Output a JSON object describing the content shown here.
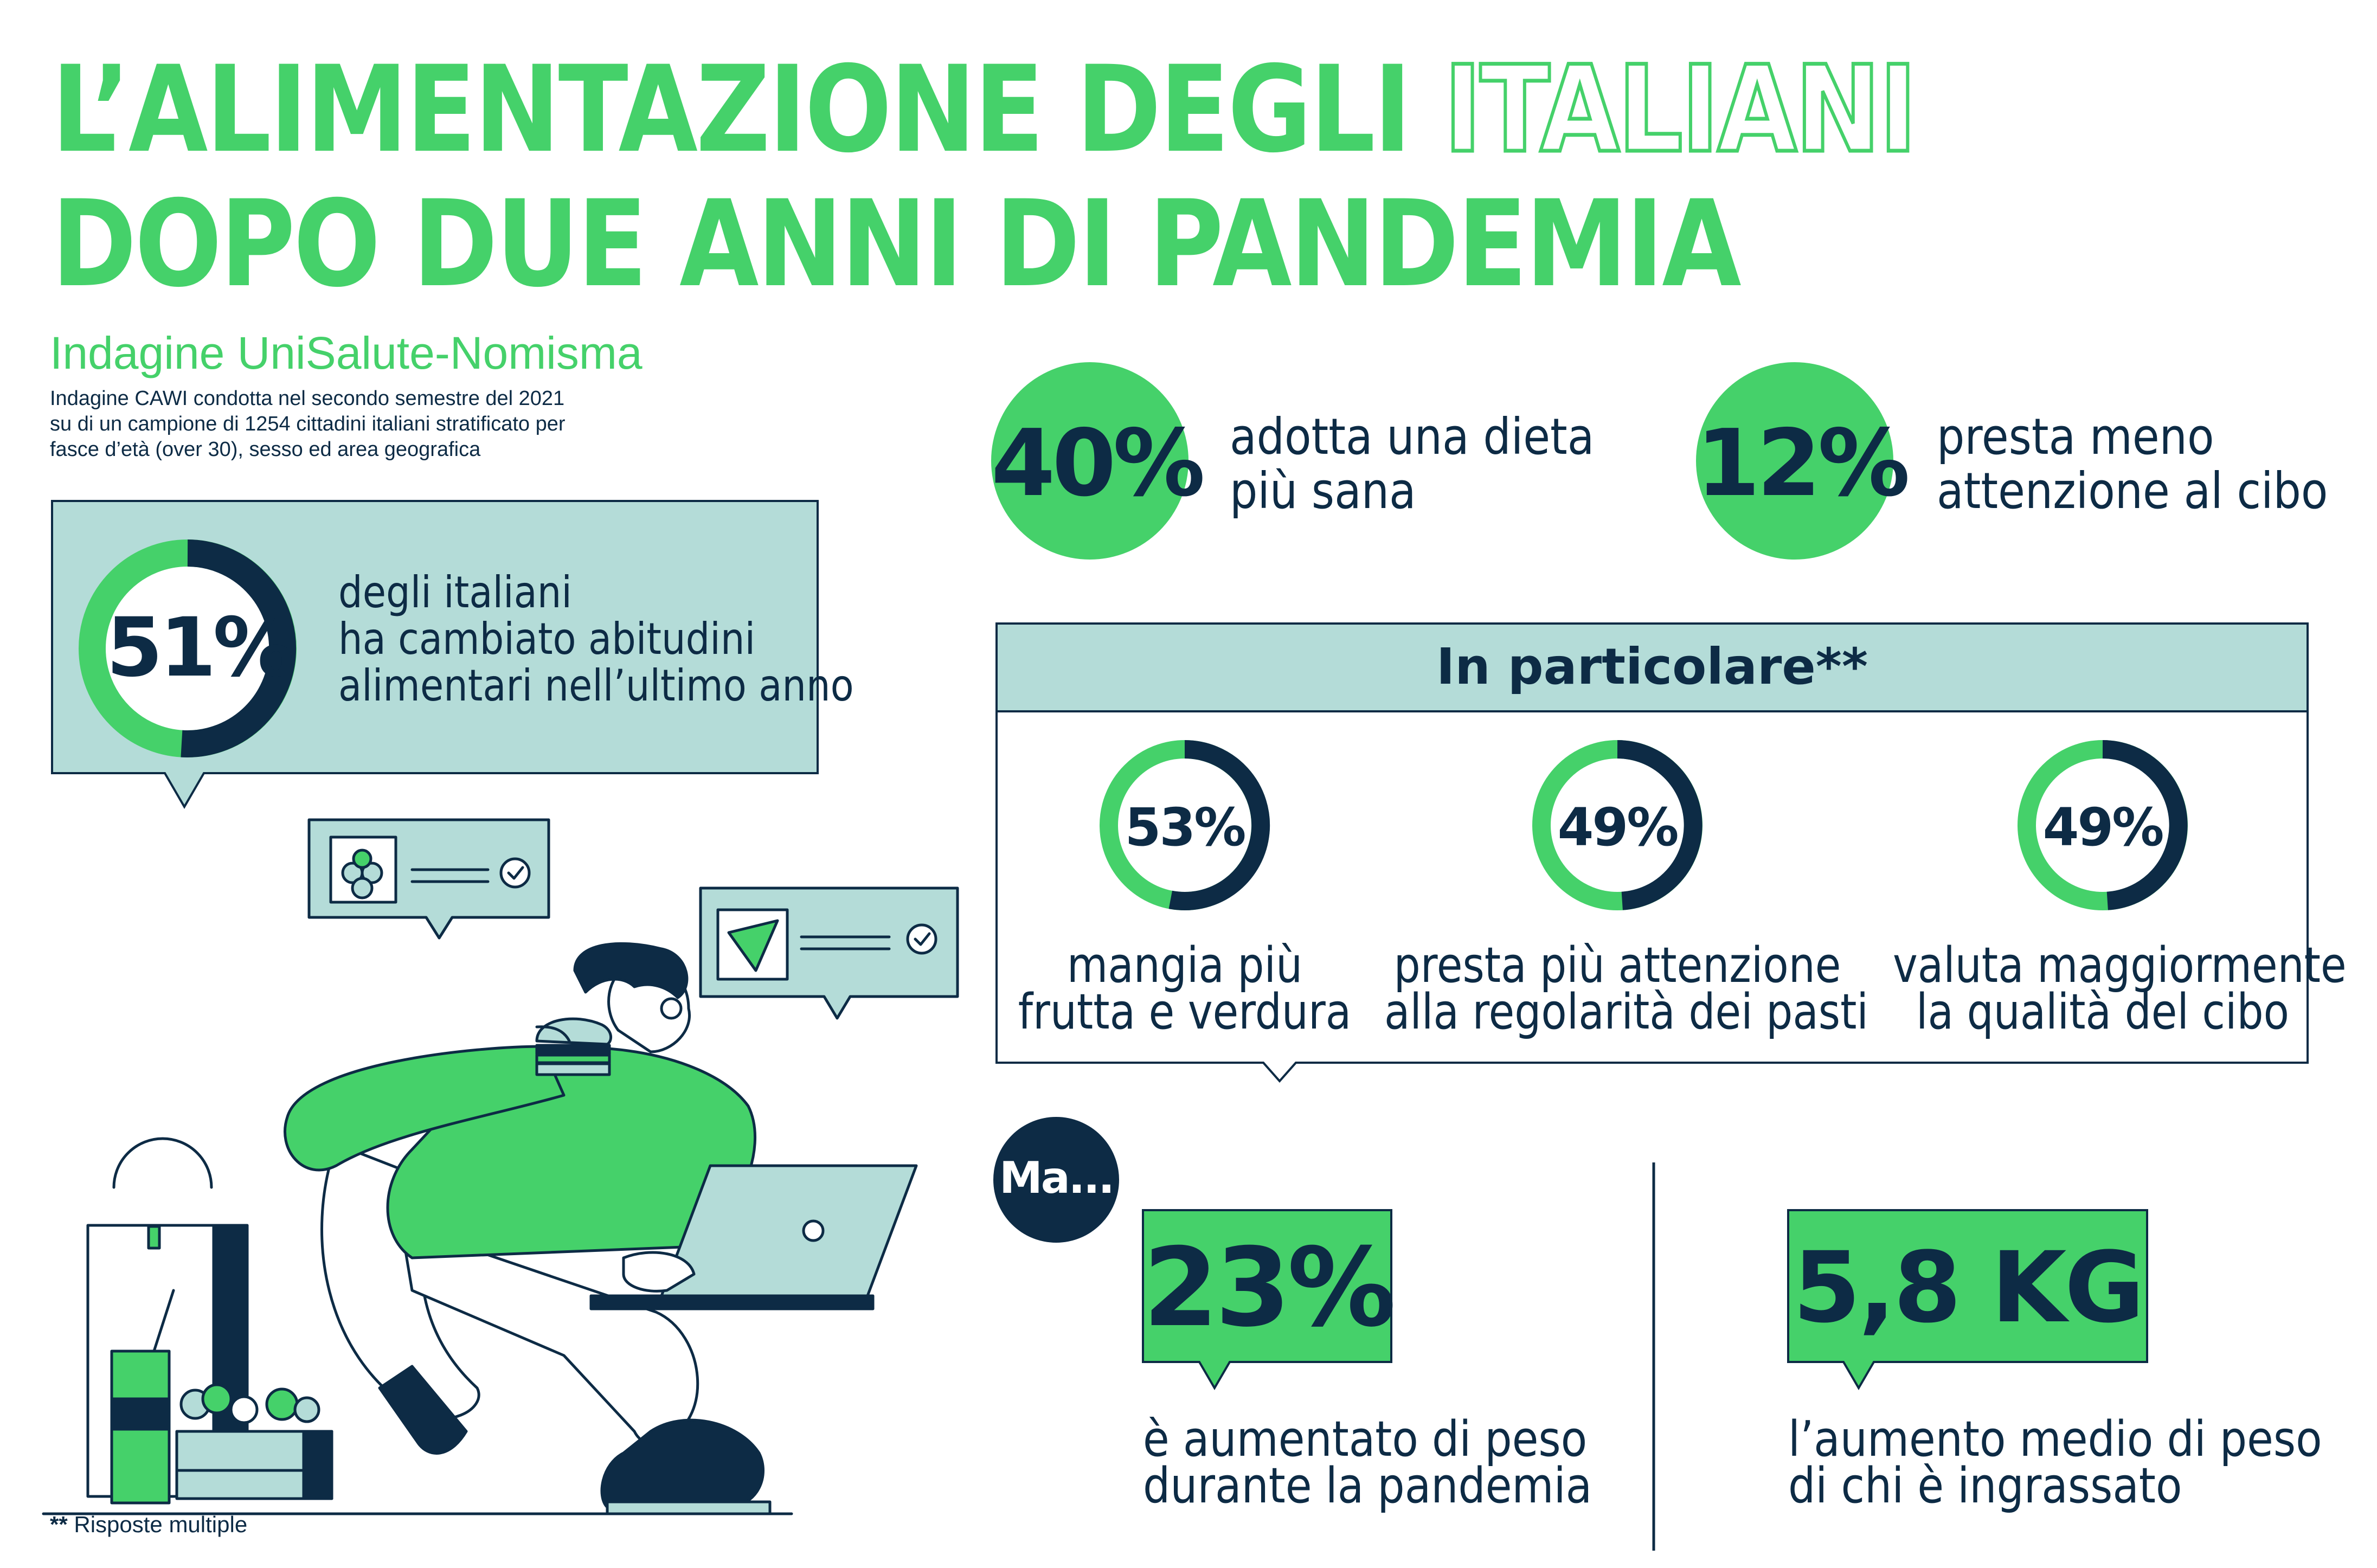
{
  "header": {
    "title_line1_a": "L’ALIMENTAZIONE DEGLI ",
    "title_line1_b": "ITALIANI",
    "title_line2": "DOPO DUE ANNI DI PANDEMIA",
    "subtitle": "Indagine UniSalute-Nomisma",
    "method_line1": "Indagine CAWI condotta nel secondo semestre del 2021",
    "method_line2": "su di un campione di 1254 cittadini italiani stratificato per",
    "method_line3": "fasce d’età (over 30), sesso ed area geografica"
  },
  "main_stat": {
    "value": "51%",
    "fraction": 0.51,
    "line1": "degli italiani",
    "line2": "ha cambiato abitudini",
    "line3": "alimentari nell’ultimo anno"
  },
  "top_stats": [
    {
      "value": "40%",
      "line1": "adotta una dieta",
      "line2": "più sana"
    },
    {
      "value": "12%",
      "line1": "presta meno",
      "line2": "attenzione al cibo"
    }
  ],
  "detail": {
    "header": "In particolare**",
    "items": [
      {
        "value": "53%",
        "fraction": 0.53,
        "line1": "mangia più",
        "line2": "frutta e verdura"
      },
      {
        "value": "49%",
        "fraction": 0.49,
        "line1": "presta più attenzione",
        "line2": "alla regolarità dei pasti"
      },
      {
        "value": "49%",
        "fraction": 0.49,
        "line1": "valuta maggiormente",
        "line2": "la qualità del cibo"
      }
    ]
  },
  "ma": {
    "label": "Ma...",
    "stat1": {
      "value": "23%",
      "line1": "è aumentato di peso",
      "line2": "durante la pandemia"
    },
    "stat2": {
      "value": "5,8 KG",
      "line1": "l’aumento medio di peso",
      "line2": "di chi è ingrassato"
    }
  },
  "footnote": {
    "stars": "**",
    "text": " Risposte multiple"
  },
  "colors": {
    "green": "#45d16a",
    "navy": "#0d2b45",
    "teal": "#b4dcd8"
  }
}
